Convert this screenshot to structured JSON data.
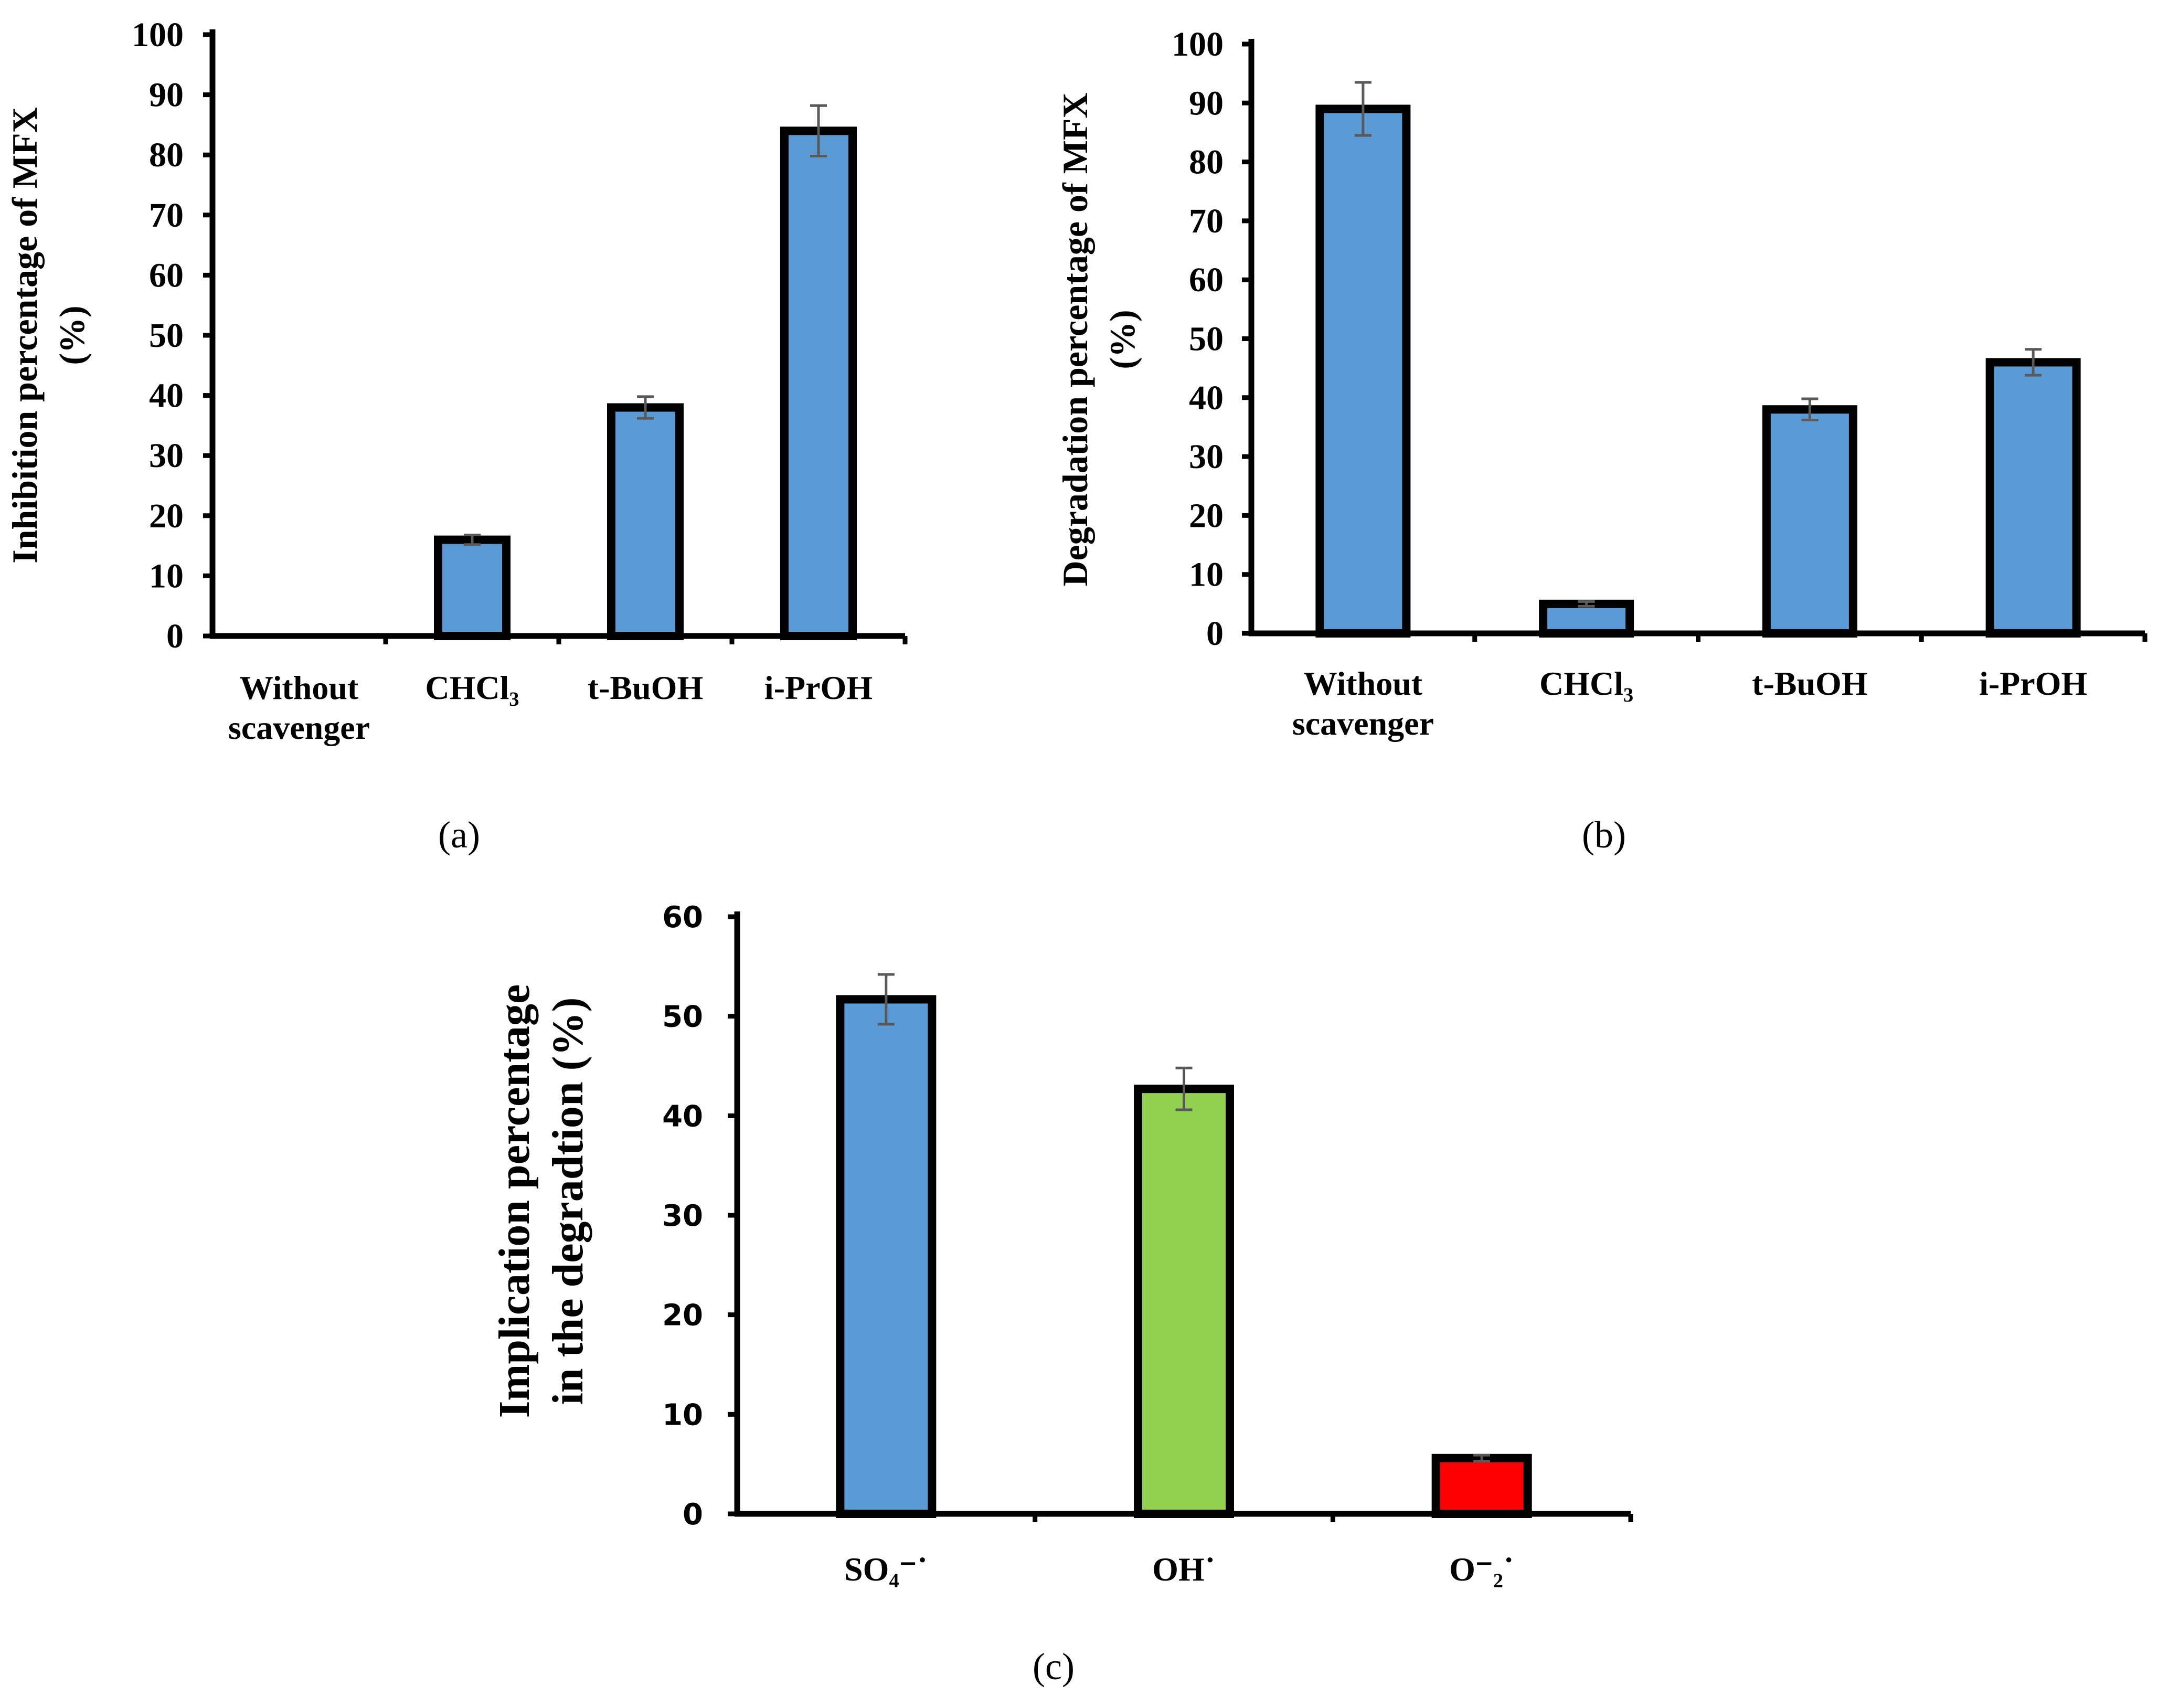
{
  "chart_data": [
    {
      "panel": "a",
      "type": "bar",
      "ylabel_line1": "Inhibition percentage of MFX",
      "ylabel_line2": "(%)",
      "ylim": [
        0,
        100
      ],
      "yticks": [
        0,
        10,
        20,
        30,
        40,
        50,
        60,
        70,
        80,
        90,
        100
      ],
      "categories": [
        "Without scavenger",
        "CHCl₃",
        "t-BuOH",
        "i-PrOH"
      ],
      "category_lines": [
        [
          "Without",
          "scavenger"
        ],
        [
          "CHCl₃"
        ],
        [
          "t-BuOH"
        ],
        [
          "i-PrOH"
        ]
      ],
      "values": [
        0,
        16,
        38,
        84
      ],
      "errors": [
        0,
        0.8,
        1.8,
        4.2
      ],
      "colors": [
        "#5b9bd5",
        "#5b9bd5",
        "#5b9bd5",
        "#5b9bd5"
      ]
    },
    {
      "panel": "b",
      "type": "bar",
      "ylabel_line1": "Degradation percentage of MFX",
      "ylabel_line2": "(%)",
      "ylim": [
        0,
        100
      ],
      "yticks": [
        0,
        10,
        20,
        30,
        40,
        50,
        60,
        70,
        80,
        90,
        100
      ],
      "categories": [
        "Without scavenger",
        "CHCl₃",
        "t-BuOH",
        "i-PrOH"
      ],
      "category_lines": [
        [
          "Without",
          "scavenger"
        ],
        [
          "CHCl₃"
        ],
        [
          "t-BuOH"
        ],
        [
          "i-PrOH"
        ]
      ],
      "values": [
        89,
        5,
        38,
        46
      ],
      "errors": [
        4.5,
        0.4,
        1.8,
        2.2
      ],
      "colors": [
        "#5b9bd5",
        "#5b9bd5",
        "#5b9bd5",
        "#5b9bd5"
      ]
    },
    {
      "panel": "c",
      "type": "bar",
      "ylabel_line1": "Implication percentage",
      "ylabel_line2": "in the degradtion (%)",
      "ylim": [
        0,
        60
      ],
      "yticks": [
        0,
        10,
        20,
        30,
        40,
        50,
        60
      ],
      "categories": [
        "SO₄⁻˙",
        "OH˙",
        "O⁻₂˙"
      ],
      "category_lines": [
        [
          "SO₄⁻˙"
        ],
        [
          "OH˙"
        ],
        [
          "O⁻₂˙"
        ]
      ],
      "values": [
        51.7,
        42.7,
        5.6
      ],
      "errors": [
        2.5,
        2.1,
        0.3
      ],
      "colors": [
        "#5b9bd5",
        "#92d050",
        "#ff0000"
      ]
    }
  ],
  "panel_labels": [
    "(a)",
    "(b)",
    "(c)"
  ]
}
